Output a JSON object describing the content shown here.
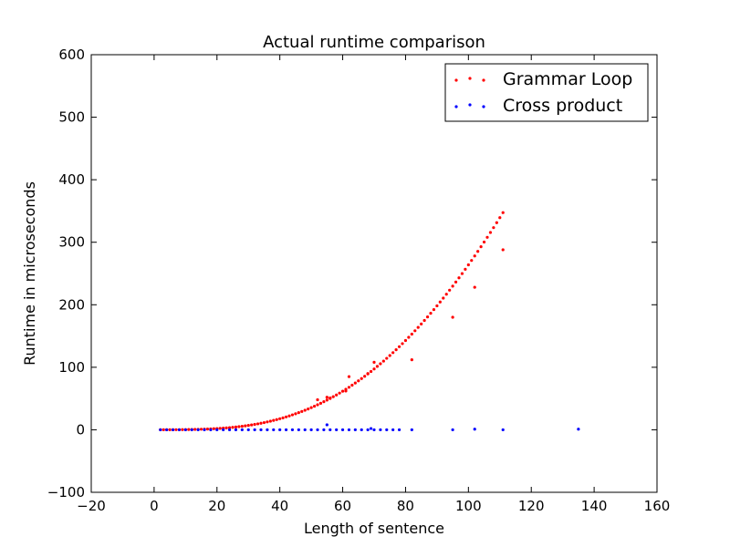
{
  "chart_data": {
    "type": "scatter",
    "title": "Actual runtime comparison",
    "xlabel": "Length of sentence",
    "ylabel": "Runtime in microseconds",
    "xlim": [
      -20,
      160
    ],
    "ylim": [
      -100,
      600
    ],
    "xticks": [
      -20,
      0,
      20,
      40,
      60,
      80,
      100,
      120,
      140,
      160
    ],
    "yticks": [
      -100,
      0,
      100,
      200,
      300,
      400,
      500,
      600
    ],
    "xtick_labels": [
      "−20",
      "0",
      "20",
      "40",
      "60",
      "80",
      "100",
      "120",
      "140",
      "160"
    ],
    "ytick_labels": [
      "−100",
      "0",
      "100",
      "200",
      "300",
      "400",
      "500",
      "600"
    ],
    "grid": false,
    "legend_position": "top-right",
    "series": [
      {
        "name": "Grammar Loop",
        "color": "#ff0000",
        "points": [
          [
            2,
            0.1
          ],
          [
            3,
            0.1
          ],
          [
            4,
            0.1
          ],
          [
            5,
            0.1
          ],
          [
            6,
            0.1
          ],
          [
            7,
            0.2
          ],
          [
            8,
            0.2
          ],
          [
            9,
            0.3
          ],
          [
            10,
            0.3
          ],
          [
            11,
            0.4
          ],
          [
            12,
            0.5
          ],
          [
            13,
            0.6
          ],
          [
            14,
            0.7
          ],
          [
            15,
            0.9
          ],
          [
            16,
            1
          ],
          [
            17,
            1.2
          ],
          [
            18,
            1.4
          ],
          [
            19,
            1.7
          ],
          [
            20,
            2
          ],
          [
            21,
            2.3
          ],
          [
            22,
            2.6
          ],
          [
            23,
            3
          ],
          [
            24,
            3.4
          ],
          [
            25,
            3.9
          ],
          [
            26,
            4.4
          ],
          [
            27,
            5
          ],
          [
            28,
            5.6
          ],
          [
            29,
            6.3
          ],
          [
            30,
            7
          ],
          [
            31,
            7.8
          ],
          [
            32,
            8.6
          ],
          [
            33,
            9.5
          ],
          [
            34,
            10.5
          ],
          [
            35,
            11.5
          ],
          [
            36,
            12.6
          ],
          [
            37,
            13.8
          ],
          [
            38,
            15
          ],
          [
            39,
            16.3
          ],
          [
            40,
            17.7
          ],
          [
            41,
            19.1
          ],
          [
            42,
            20.6
          ],
          [
            43,
            22.2
          ],
          [
            44,
            23.9
          ],
          [
            45,
            25.6
          ],
          [
            46,
            27.4
          ],
          [
            47,
            29.3
          ],
          [
            48,
            31.3
          ],
          [
            49,
            33.3
          ],
          [
            50,
            35.5
          ],
          [
            51,
            37.7
          ],
          [
            52,
            40
          ],
          [
            53,
            42.4
          ],
          [
            54,
            44.9
          ],
          [
            55,
            47.5
          ],
          [
            56,
            50.1
          ],
          [
            57,
            52.9
          ],
          [
            58,
            55.7
          ],
          [
            59,
            58.7
          ],
          [
            60,
            61.7
          ],
          [
            61,
            64.8
          ],
          [
            62,
            68
          ],
          [
            63,
            71.3
          ],
          [
            64,
            74.8
          ],
          [
            65,
            78.3
          ],
          [
            66,
            81.9
          ],
          [
            67,
            85.6
          ],
          [
            68,
            89.4
          ],
          [
            69,
            93.3
          ],
          [
            70,
            97.3
          ],
          [
            71,
            101.4
          ],
          [
            72,
            105.6
          ],
          [
            73,
            109.9
          ],
          [
            74,
            114.3
          ],
          [
            75,
            118.8
          ],
          [
            76,
            123.4
          ],
          [
            77,
            128.1
          ],
          [
            78,
            132.9
          ],
          [
            79,
            137.8
          ],
          [
            80,
            142.8
          ],
          [
            81,
            147.9
          ],
          [
            82,
            153.1
          ],
          [
            83,
            158.4
          ],
          [
            84,
            163.8
          ],
          [
            85,
            169.3
          ],
          [
            86,
            174.9
          ],
          [
            87,
            180.6
          ],
          [
            88,
            186.4
          ],
          [
            89,
            192.3
          ],
          [
            90,
            198.3
          ],
          [
            91,
            204.4
          ],
          [
            92,
            210.6
          ],
          [
            93,
            216.9
          ],
          [
            94,
            223.3
          ],
          [
            95,
            229.8
          ],
          [
            96,
            236.4
          ],
          [
            97,
            243.1
          ],
          [
            98,
            249.9
          ],
          [
            99,
            256.8
          ],
          [
            100,
            263.8
          ],
          [
            101,
            270.9
          ],
          [
            102,
            278.1
          ],
          [
            103,
            285.4
          ],
          [
            104,
            292.8
          ],
          [
            105,
            300.3
          ],
          [
            106,
            307.9
          ],
          [
            107,
            315.6
          ],
          [
            108,
            323.4
          ],
          [
            109,
            331.3
          ],
          [
            110,
            339.3
          ],
          [
            111,
            347.4
          ],
          [
            52,
            48
          ],
          [
            55,
            52
          ],
          [
            56,
            51
          ],
          [
            61,
            62
          ],
          [
            62,
            85
          ],
          [
            68,
            90
          ],
          [
            70,
            108
          ],
          [
            82,
            112
          ],
          [
            95,
            180
          ],
          [
            102,
            228
          ],
          [
            111,
            288
          ]
        ]
      },
      {
        "name": "Cross product",
        "color": "#0000ff",
        "points": [
          [
            2,
            0
          ],
          [
            4,
            0
          ],
          [
            6,
            0
          ],
          [
            8,
            0
          ],
          [
            10,
            0
          ],
          [
            12,
            0
          ],
          [
            14,
            0
          ],
          [
            16,
            0
          ],
          [
            18,
            0
          ],
          [
            20,
            0
          ],
          [
            22,
            0
          ],
          [
            24,
            0
          ],
          [
            26,
            0
          ],
          [
            28,
            0
          ],
          [
            30,
            0
          ],
          [
            32,
            0
          ],
          [
            34,
            0
          ],
          [
            36,
            0
          ],
          [
            38,
            0
          ],
          [
            40,
            0
          ],
          [
            42,
            0
          ],
          [
            44,
            0
          ],
          [
            46,
            0
          ],
          [
            48,
            0
          ],
          [
            50,
            0
          ],
          [
            52,
            0
          ],
          [
            54,
            0
          ],
          [
            56,
            0
          ],
          [
            58,
            0
          ],
          [
            60,
            0
          ],
          [
            62,
            0
          ],
          [
            64,
            0
          ],
          [
            66,
            0
          ],
          [
            68,
            0
          ],
          [
            70,
            0
          ],
          [
            72,
            0
          ],
          [
            74,
            0
          ],
          [
            76,
            0
          ],
          [
            78,
            0
          ],
          [
            82,
            0
          ],
          [
            55,
            8
          ],
          [
            69,
            2
          ],
          [
            95,
            0
          ],
          [
            102,
            1
          ],
          [
            111,
            0
          ],
          [
            135,
            1
          ]
        ]
      }
    ]
  }
}
